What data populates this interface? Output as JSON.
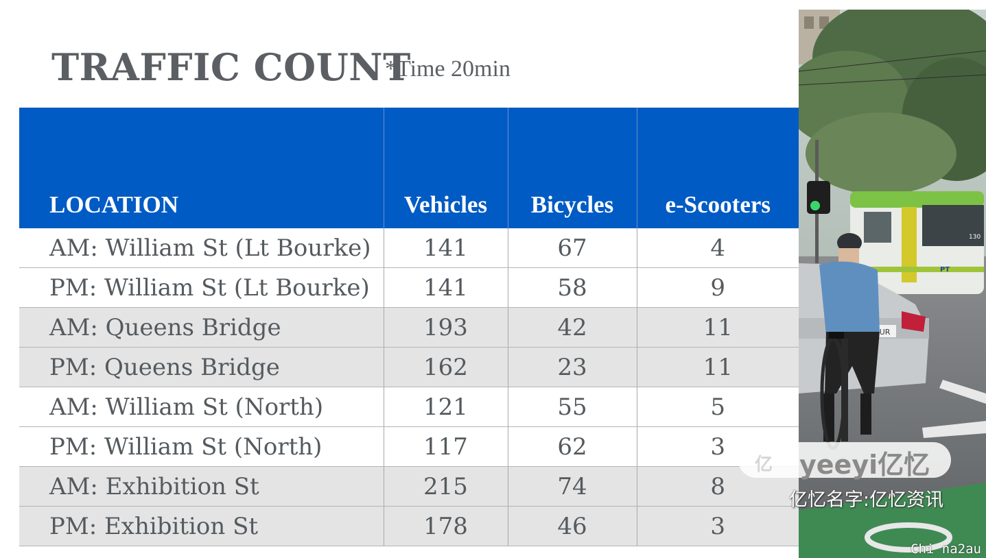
{
  "header": {
    "title": "TRAFFIC COUNT",
    "subtitle": "*Time 20min"
  },
  "table": {
    "columns": [
      "LOCATION",
      "Vehicles",
      "Bicycles",
      "e-Scooters"
    ],
    "rows": [
      {
        "location": "AM: William St (Lt Bourke)",
        "vehicles": "141",
        "bicycles": "67",
        "escooters": "4"
      },
      {
        "location": "PM: William St (Lt Bourke)",
        "vehicles": "141",
        "bicycles": "58",
        "escooters": "9"
      },
      {
        "location": "AM: Queens Bridge",
        "vehicles": "193",
        "bicycles": "42",
        "escooters": "11"
      },
      {
        "location": "PM: Queens Bridge",
        "vehicles": "162",
        "bicycles": "23",
        "escooters": "11"
      },
      {
        "location": "AM: William St (North)",
        "vehicles": "121",
        "bicycles": "55",
        "escooters": "5"
      },
      {
        "location": "PM: William St (North)",
        "vehicles": "117",
        "bicycles": "62",
        "escooters": "3"
      },
      {
        "location": "AM: Exhibition St",
        "vehicles": "215",
        "bicycles": "74",
        "escooters": "8"
      },
      {
        "location": "PM: Exhibition St",
        "vehicles": "178",
        "bicycles": "46",
        "escooters": "3"
      }
    ]
  },
  "photo": {
    "tram_sign": "PT",
    "tram_number": "130",
    "plate_text": "0TUR"
  },
  "watermark": {
    "logo": "亿",
    "brand": "yeeyi亿忆",
    "site": "亿忆名字:亿忆资讯",
    "corner": "Chi na2au"
  },
  "colors": {
    "header_blue": "#005bc4",
    "title_gray": "#5b5f63",
    "row_shade": "#e4e4e4"
  }
}
